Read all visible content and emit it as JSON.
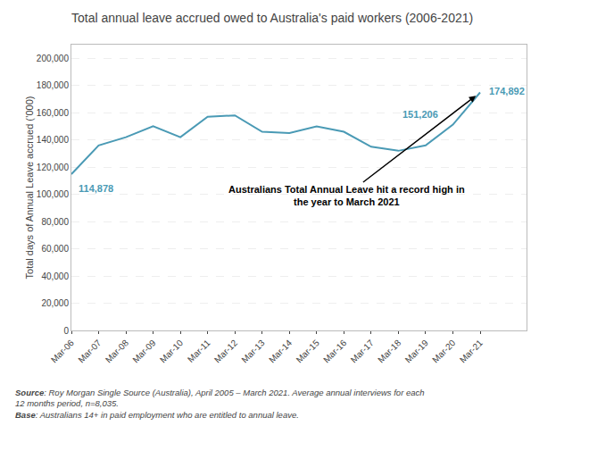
{
  "chart_data": {
    "type": "line",
    "title": "Total annual leave accrued owed to Australia's paid workers (2006-2021)",
    "ylabel": "Total days of Annual Leave accrued (’000)",
    "categories": [
      "Mar-06",
      "Mar-07",
      "Mar-08",
      "Mar-09",
      "Mar-10",
      "Mar-11",
      "Mar-12",
      "Mar-13",
      "Mar-14",
      "Mar-15",
      "Mar-16",
      "Mar-17",
      "Mar-18",
      "Mar-19",
      "Mar-20",
      "Mar-21"
    ],
    "values": [
      114878,
      136000,
      142000,
      150000,
      142000,
      157000,
      158000,
      146000,
      145000,
      150000,
      146000,
      135000,
      132000,
      136000,
      151206,
      174892
    ],
    "value_labels": [
      "114,878",
      null,
      null,
      null,
      null,
      null,
      null,
      null,
      null,
      null,
      null,
      null,
      null,
      null,
      "151,206",
      "174,892"
    ],
    "color": "#4a9ab5",
    "ylim": [
      0,
      210000
    ],
    "yticks": [
      0,
      {
        "value": 20000,
        "label": "20,000"
      },
      {
        "value": 40000,
        "label": "40,000"
      },
      {
        "value": 60000,
        "label": "60,000"
      },
      {
        "value": 80000,
        "label": "80,000"
      },
      {
        "value": 100000,
        "label": "100,000"
      },
      {
        "value": 120000,
        "label": "120,000"
      },
      {
        "value": 140000,
        "label": "140,000"
      },
      {
        "value": 160000,
        "label": "160,000"
      },
      {
        "value": 180000,
        "label": "180,000"
      },
      {
        "value": 200000,
        "label": "200,000"
      }
    ],
    "grid": true,
    "annotations": [
      "Australians Total Annual Leave hit a record high in\nthe year to March 2021"
    ],
    "footnotes": [
      "Source: Roy Morgan Single Source (Australia), April 2005 – March 2021. Average annual interviews for each 12 months period, n=8,035.",
      "Base: Australians 14+ in paid employment who are entitled to annual leave."
    ]
  }
}
